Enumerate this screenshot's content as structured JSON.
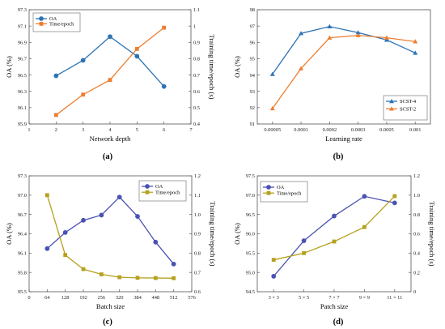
{
  "figure": {
    "panels": [
      "(a)",
      "(b)",
      "(c)",
      "(d)"
    ]
  },
  "colors": {
    "a_oa": "#2e74b5",
    "a_time": "#ed7d31",
    "b_scst4": "#2e74b5",
    "b_scst2": "#ed7d31",
    "c_oa": "#4a52b3",
    "c_time": "#b5a11e",
    "d_oa": "#4a52b3",
    "d_time": "#b5a11e"
  },
  "chart_data": [
    {
      "panel": "(a)",
      "type": "line",
      "xlabel": "Network depth",
      "ylabel": "OA (%)",
      "y2label": "Training time/epoch (s)",
      "xlim": [
        1,
        7
      ],
      "xticks": [
        "1",
        "2",
        "3",
        "4",
        "5",
        "6",
        "7"
      ],
      "ylim": [
        95.9,
        97.3
      ],
      "yticks": [
        "95.9",
        "96.1",
        "96.3",
        "96.5",
        "96.7",
        "96.9",
        "97.1",
        "97.3"
      ],
      "y2lim": [
        0.4,
        1.1
      ],
      "y2ticks": [
        "0.4",
        "0.5",
        "0.6",
        "0.7",
        "0.8",
        "0.9",
        "1",
        "1.1"
      ],
      "legend": "top-left",
      "series": [
        {
          "name": "OA",
          "axis": "left",
          "marker": "circle",
          "x": [
            2,
            3,
            4,
            5,
            6
          ],
          "values": [
            96.49,
            96.68,
            96.97,
            96.73,
            96.36
          ]
        },
        {
          "name": "Time/epoch",
          "axis": "right",
          "marker": "square",
          "x": [
            2,
            3,
            4,
            5,
            6
          ],
          "values": [
            0.455,
            0.58,
            0.67,
            0.86,
            0.99
          ]
        }
      ]
    },
    {
      "panel": "(b)",
      "type": "line",
      "xlabel": "Learning rate",
      "ylabel": "OA (%)",
      "categories": [
        "0.00005",
        "0.0001",
        "0.0002",
        "0.0003",
        "0.0005",
        "0.001"
      ],
      "ylim": [
        91,
        98
      ],
      "yticks": [
        "91",
        "92",
        "93",
        "94",
        "95",
        "96",
        "97",
        "98"
      ],
      "legend": "bottom-right",
      "series": [
        {
          "name": "SCST-4",
          "marker": "triangle",
          "values": [
            94.05,
            96.55,
            96.97,
            96.6,
            96.15,
            95.35
          ]
        },
        {
          "name": "SCST-2",
          "marker": "triangle",
          "values": [
            91.95,
            94.4,
            96.28,
            96.43,
            96.28,
            96.05
          ]
        }
      ]
    },
    {
      "panel": "(c)",
      "type": "line",
      "xlabel": "Batch size",
      "ylabel": "OA (%)",
      "y2label": "Training time/epoch (s)",
      "xlim": [
        0,
        576
      ],
      "xticks": [
        "0",
        "64",
        "128",
        "192",
        "256",
        "320",
        "384",
        "448",
        "512",
        "576"
      ],
      "ylim": [
        95.5,
        97.3
      ],
      "yticks": [
        "95.5",
        "95.8",
        "96.1",
        "96.4",
        "96.7",
        "97.0",
        "97.3"
      ],
      "y2lim": [
        0.6,
        1.2
      ],
      "y2ticks": [
        "0.6",
        "0.7",
        "0.8",
        "0.9",
        "1.0",
        "1.1",
        "1.2"
      ],
      "legend": "top-right",
      "series": [
        {
          "name": "OA",
          "axis": "left",
          "marker": "circle",
          "x": [
            64,
            128,
            192,
            256,
            320,
            384,
            448,
            512
          ],
          "values": [
            96.17,
            96.42,
            96.61,
            96.69,
            96.97,
            96.67,
            96.27,
            95.93
          ]
        },
        {
          "name": "Time/epoch",
          "axis": "right",
          "marker": "square",
          "x": [
            64,
            128,
            192,
            256,
            320,
            384,
            448,
            512
          ],
          "values": [
            1.1,
            0.79,
            0.717,
            0.69,
            0.675,
            0.672,
            0.671,
            0.67
          ]
        }
      ]
    },
    {
      "panel": "(d)",
      "type": "line",
      "xlabel": "Patch size",
      "ylabel": "OA (%)",
      "y2label": "Training time/epoch (s)",
      "categories": [
        "3 × 3",
        "5 × 5",
        "7 × 7",
        "9 × 9",
        "11 × 11"
      ],
      "ylim": [
        94.5,
        97.5
      ],
      "yticks": [
        "94.5",
        "95.0",
        "95.5",
        "96.0",
        "96.5",
        "97.0",
        "97.5"
      ],
      "y2lim": [
        0,
        1.2
      ],
      "y2ticks": [
        "0",
        "0.2",
        "0.4",
        "0.6",
        "0.8",
        "1.0",
        "1.2"
      ],
      "legend": "top-left",
      "series": [
        {
          "name": "OA",
          "axis": "left",
          "marker": "circle",
          "values": [
            94.9,
            95.82,
            96.46,
            96.97,
            96.8
          ]
        },
        {
          "name": "Time/epoch",
          "axis": "right",
          "marker": "square",
          "values": [
            0.33,
            0.4,
            0.52,
            0.67,
            0.99
          ]
        }
      ]
    }
  ]
}
